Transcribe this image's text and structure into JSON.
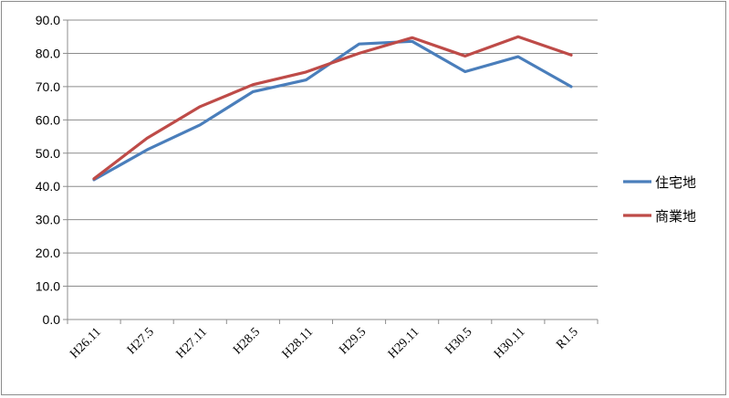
{
  "chart_data": {
    "type": "line",
    "title": "",
    "xlabel": "",
    "ylabel": "",
    "ylim": [
      0,
      90
    ],
    "ytick_step": 10,
    "ytick_format": "0.0",
    "grid": true,
    "legend_position": "right",
    "categories": [
      "H26.11",
      "H27.5",
      "H27.11",
      "H28.5",
      "H28.11",
      "H29.5",
      "H29.11",
      "H30.5",
      "H30.11",
      "R1.5"
    ],
    "series": [
      {
        "name": "住宅地",
        "color": "#4a7ebb",
        "values": [
          42.0,
          51.0,
          58.5,
          68.5,
          72.0,
          82.8,
          83.6,
          74.5,
          79.0,
          70.0
        ]
      },
      {
        "name": "商業地",
        "color": "#be4b48",
        "values": [
          42.3,
          54.5,
          64.0,
          70.6,
          74.4,
          80.0,
          84.7,
          79.2,
          85.0,
          79.5
        ]
      }
    ]
  }
}
